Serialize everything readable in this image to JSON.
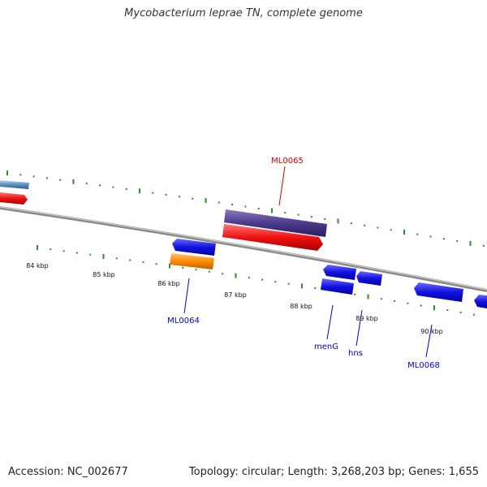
{
  "title": "Mycobacterium leprae TN, complete genome",
  "footer": {
    "accession": "Accession: NC_002677",
    "stats": "Topology: circular; Length: 3,268,203 bp; Genes: 1,655"
  },
  "colors": {
    "backbone": "#808080",
    "tick": "#2e8b2e",
    "forward_gene": "#1010e0",
    "red_gene": "#ee1111",
    "purple_gene": "#4a3a8a",
    "orange_gene": "#ff8c00",
    "blue_label": "#0000cc",
    "red_label": "#cc0000"
  },
  "ticks": [
    {
      "label": "84 kbp"
    },
    {
      "label": "85 kbp"
    },
    {
      "label": "86 kbp"
    },
    {
      "label": "87 kbp"
    },
    {
      "label": "88 kbp"
    },
    {
      "label": "89 kbp"
    },
    {
      "label": "90 kbp"
    }
  ],
  "genes": [
    {
      "name": "ML0064",
      "color": "blue"
    },
    {
      "name": "ML0065",
      "color": "red"
    },
    {
      "name": "menG",
      "color": "blue"
    },
    {
      "name": "hns",
      "color": "blue"
    },
    {
      "name": "ML0068",
      "color": "blue"
    }
  ]
}
